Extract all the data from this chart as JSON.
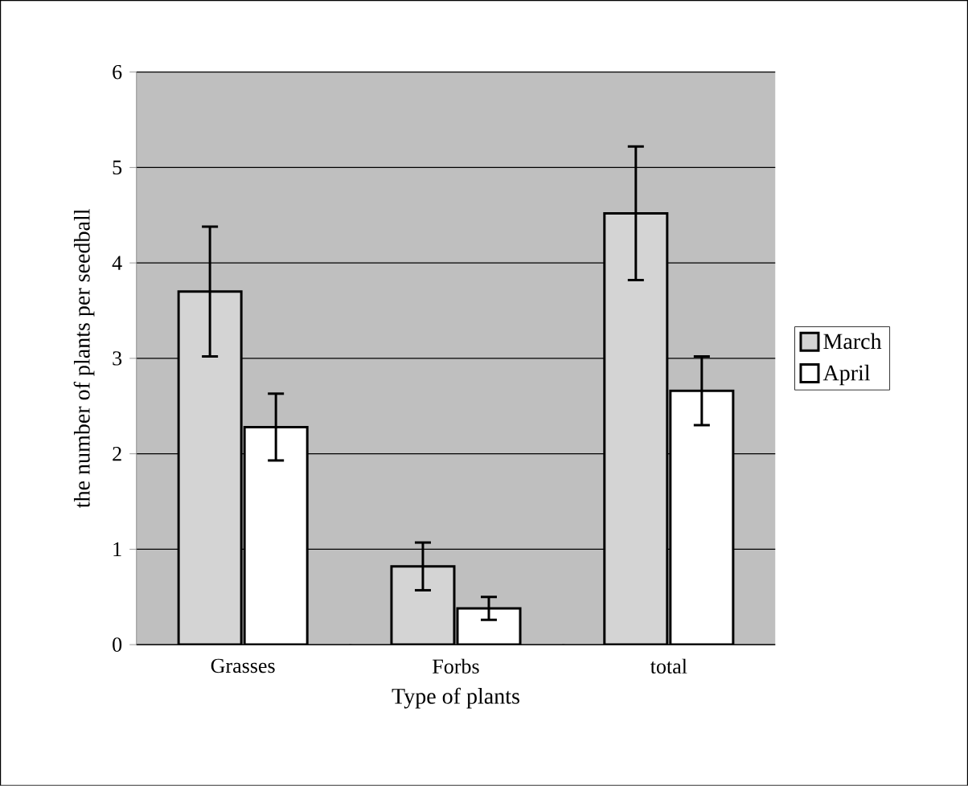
{
  "chart_data": {
    "type": "bar",
    "xlabel": "Type of plants",
    "ylabel": "the number of plants per seedball",
    "categories": [
      "Grasses",
      "Forbs",
      "total"
    ],
    "series": [
      {
        "name": "March",
        "color": "#d4d4d4",
        "values": [
          3.7,
          0.82,
          4.52
        ],
        "errors": [
          0.68,
          0.25,
          0.7
        ]
      },
      {
        "name": "April",
        "color": "#ffffff",
        "values": [
          2.28,
          0.38,
          2.66
        ],
        "errors": [
          0.35,
          0.12,
          0.36
        ]
      }
    ],
    "ylim": [
      0,
      6
    ],
    "yticks": [
      0,
      1,
      2,
      3,
      4,
      5,
      6
    ],
    "grid": "y",
    "legend": "right"
  }
}
